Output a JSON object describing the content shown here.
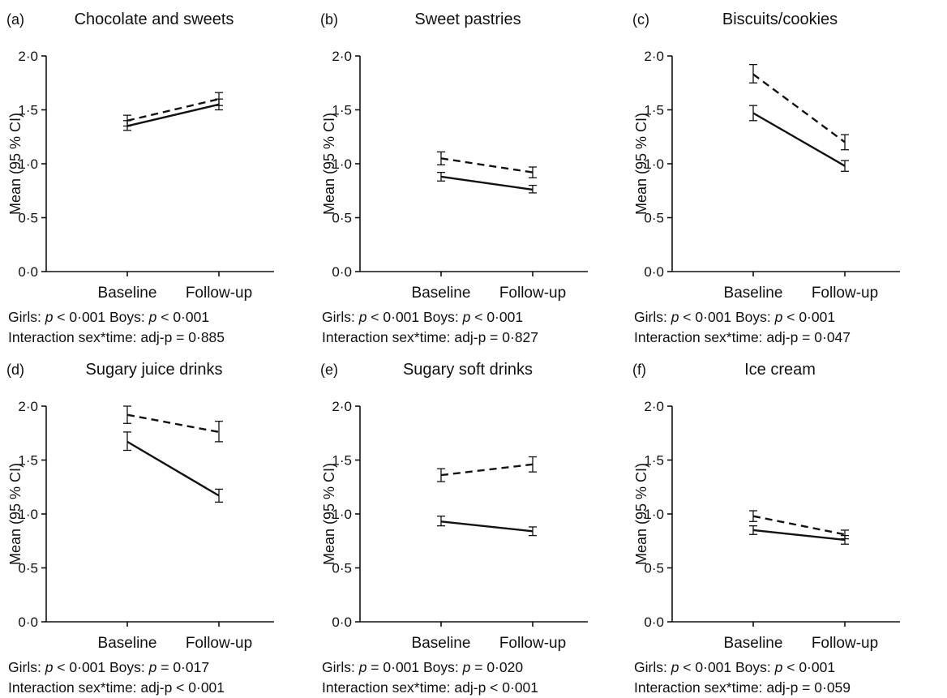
{
  "y_axis": {
    "label": "Mean (95 % CI)",
    "range": [
      0,
      2
    ],
    "ticks": [
      0,
      0.5,
      1.0,
      1.5,
      2.0
    ],
    "tick_labels": [
      "0·0",
      "0·5",
      "1·0",
      "1·5",
      "2·0"
    ]
  },
  "chart_data": [
    {
      "type": "line",
      "panel_label": "(a)",
      "title": "Chocolate and sweets",
      "categories": [
        "Baseline",
        "Follow-up"
      ],
      "ylabel": "Mean (95 % CI)",
      "ylim": [
        0,
        2
      ],
      "series": [
        {
          "style": "solid",
          "values": [
            1.35,
            1.55
          ],
          "ci_low": [
            1.31,
            1.5
          ],
          "ci_high": [
            1.4,
            1.6
          ]
        },
        {
          "style": "dashed",
          "values": [
            1.4,
            1.6
          ],
          "ci_low": [
            1.35,
            1.54
          ],
          "ci_high": [
            1.45,
            1.66
          ]
        }
      ],
      "stats": {
        "line1": [
          {
            "t": "Girls: "
          },
          {
            "t": "p",
            "i": true
          },
          {
            "t": " < 0·001 Boys: "
          },
          {
            "t": "p",
            "i": true
          },
          {
            "t": " < 0·001"
          }
        ],
        "line2": [
          {
            "t": "Interaction sex*time: adj-p = 0·885"
          }
        ]
      }
    },
    {
      "type": "line",
      "panel_label": "(b)",
      "title": "Sweet pastries",
      "categories": [
        "Baseline",
        "Follow-up"
      ],
      "ylabel": "Mean (95 % CI)",
      "ylim": [
        0,
        2
      ],
      "series": [
        {
          "style": "solid",
          "values": [
            0.88,
            0.76
          ],
          "ci_low": [
            0.84,
            0.73
          ],
          "ci_high": [
            0.92,
            0.8
          ]
        },
        {
          "style": "dashed",
          "values": [
            1.05,
            0.92
          ],
          "ci_low": [
            0.99,
            0.87
          ],
          "ci_high": [
            1.11,
            0.97
          ]
        }
      ],
      "stats": {
        "line1": [
          {
            "t": "Girls: "
          },
          {
            "t": "p",
            "i": true
          },
          {
            "t": " < 0·001 Boys: "
          },
          {
            "t": "p",
            "i": true
          },
          {
            "t": " < 0·001"
          }
        ],
        "line2": [
          {
            "t": "Interaction sex*time: adj-p = 0·827"
          }
        ]
      }
    },
    {
      "type": "line",
      "panel_label": "(c)",
      "title": "Biscuits/cookies",
      "categories": [
        "Baseline",
        "Follow-up"
      ],
      "ylabel": "Mean (95 % CI)",
      "ylim": [
        0,
        2
      ],
      "series": [
        {
          "style": "solid",
          "values": [
            1.47,
            0.98
          ],
          "ci_low": [
            1.4,
            0.93
          ],
          "ci_high": [
            1.54,
            1.03
          ]
        },
        {
          "style": "dashed",
          "values": [
            1.83,
            1.2
          ],
          "ci_low": [
            1.75,
            1.13
          ],
          "ci_high": [
            1.92,
            1.27
          ]
        }
      ],
      "stats": {
        "line1": [
          {
            "t": "Girls: "
          },
          {
            "t": "p",
            "i": true
          },
          {
            "t": " < 0·001 Boys: "
          },
          {
            "t": "p",
            "i": true
          },
          {
            "t": " < 0·001"
          }
        ],
        "line2": [
          {
            "t": "Interaction sex*time: adj-p = 0·047"
          }
        ]
      }
    },
    {
      "type": "line",
      "panel_label": "(d)",
      "title": "Sugary juice drinks",
      "categories": [
        "Baseline",
        "Follow-up"
      ],
      "ylabel": "Mean (95 % CI)",
      "ylim": [
        0,
        2
      ],
      "series": [
        {
          "style": "solid",
          "values": [
            1.67,
            1.17
          ],
          "ci_low": [
            1.59,
            1.11
          ],
          "ci_high": [
            1.76,
            1.23
          ]
        },
        {
          "style": "dashed",
          "values": [
            1.92,
            1.76
          ],
          "ci_low": [
            1.84,
            1.67
          ],
          "ci_high": [
            2.0,
            1.86
          ]
        }
      ],
      "stats": {
        "line1": [
          {
            "t": "Girls: "
          },
          {
            "t": "p",
            "i": true
          },
          {
            "t": " < 0·001 Boys: "
          },
          {
            "t": "p",
            "i": true
          },
          {
            "t": " = 0·017"
          }
        ],
        "line2": [
          {
            "t": "Interaction sex*time: adj-p < 0·001"
          }
        ]
      }
    },
    {
      "type": "line",
      "panel_label": "(e)",
      "title": "Sugary soft drinks",
      "categories": [
        "Baseline",
        "Follow-up"
      ],
      "ylabel": "Mean (95 % CI)",
      "ylim": [
        0,
        2
      ],
      "series": [
        {
          "style": "solid",
          "values": [
            0.93,
            0.84
          ],
          "ci_low": [
            0.89,
            0.8
          ],
          "ci_high": [
            0.98,
            0.88
          ]
        },
        {
          "style": "dashed",
          "values": [
            1.36,
            1.46
          ],
          "ci_low": [
            1.3,
            1.39
          ],
          "ci_high": [
            1.42,
            1.53
          ]
        }
      ],
      "stats": {
        "line1": [
          {
            "t": "Girls: "
          },
          {
            "t": "p",
            "i": true
          },
          {
            "t": " = 0·001 Boys: "
          },
          {
            "t": "p",
            "i": true
          },
          {
            "t": " = 0·020"
          }
        ],
        "line2": [
          {
            "t": "Interaction sex*time: adj-p < 0·001"
          }
        ]
      }
    },
    {
      "type": "line",
      "panel_label": "(f)",
      "title": "Ice cream",
      "categories": [
        "Baseline",
        "Follow-up"
      ],
      "ylabel": "Mean (95 % CI)",
      "ylim": [
        0,
        2
      ],
      "series": [
        {
          "style": "solid",
          "values": [
            0.85,
            0.76
          ],
          "ci_low": [
            0.81,
            0.72
          ],
          "ci_high": [
            0.89,
            0.8
          ]
        },
        {
          "style": "dashed",
          "values": [
            0.98,
            0.81
          ],
          "ci_low": [
            0.93,
            0.77
          ],
          "ci_high": [
            1.03,
            0.85
          ]
        }
      ],
      "stats": {
        "line1": [
          {
            "t": "Girls: "
          },
          {
            "t": "p",
            "i": true
          },
          {
            "t": " < 0·001 Boys: "
          },
          {
            "t": "p",
            "i": true
          },
          {
            "t": " < 0·001"
          }
        ],
        "line2": [
          {
            "t": "Interaction sex*time: adj-p = 0·059"
          }
        ]
      }
    }
  ]
}
